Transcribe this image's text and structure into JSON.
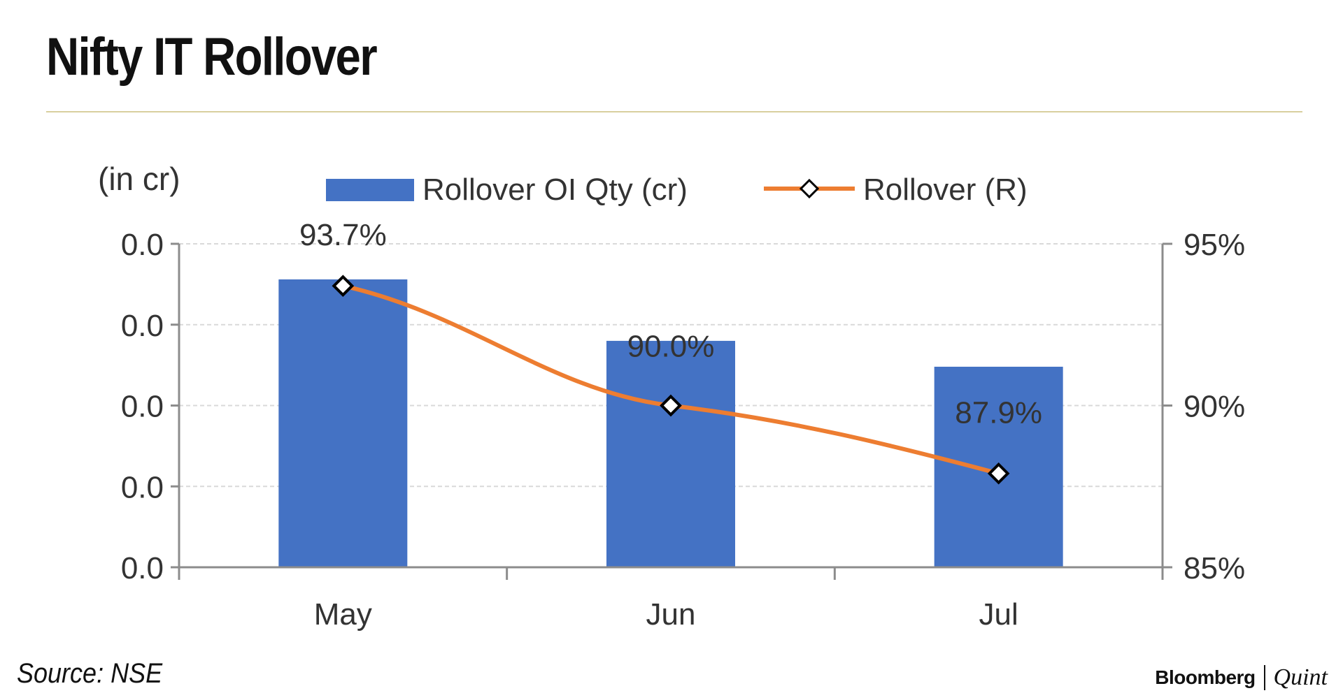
{
  "header": {
    "title": "Nifty IT Rollover"
  },
  "footer": {
    "source": "Source: NSE",
    "logo_left": "Bloomberg",
    "logo_right": "Quint"
  },
  "colors": {
    "bar": "#4472C4",
    "line": "#ED7D31",
    "marker_fill": "#ffffff",
    "marker_stroke": "#000000",
    "grid": "#d9d9d9",
    "axis": "#8c8c8c",
    "text": "#333333"
  },
  "chart_data": {
    "type": "bar",
    "categories": [
      "May",
      "Jun",
      "Jul"
    ],
    "left_axis": {
      "label": "(in cr)",
      "ticks": [
        "0.0",
        "0.0",
        "0.0",
        "0.0",
        "0.0"
      ]
    },
    "right_axis": {
      "ticks": [
        "95%",
        "90%",
        "85%"
      ],
      "ylim": [
        85,
        95
      ]
    },
    "series": [
      {
        "name": "Rollover OI Qty (cr)",
        "type": "bar",
        "axis": "left",
        "values": [
          0.0,
          0.0,
          0.0
        ],
        "relative_heights": [
          0.89,
          0.7,
          0.62
        ]
      },
      {
        "name": "Rollover (R)",
        "type": "line",
        "axis": "right",
        "values": [
          93.7,
          90.0,
          87.9
        ],
        "labels": [
          "93.7%",
          "90.0%",
          "87.9%"
        ]
      }
    ],
    "grid": true,
    "legend": "top"
  }
}
